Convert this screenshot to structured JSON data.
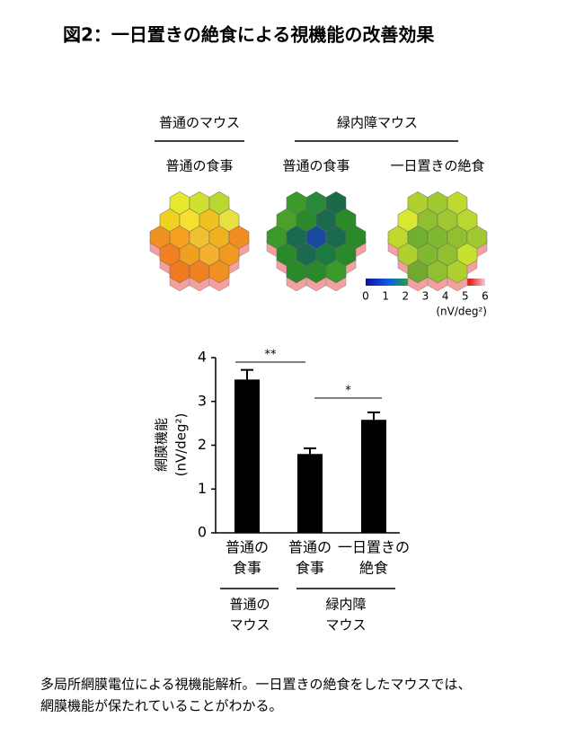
{
  "title": "図2：一日置きの絶食による視機能の改善効果",
  "heatmaps": {
    "groups": [
      {
        "label": "普通のマウス"
      },
      {
        "label": "緑内障マウス"
      }
    ],
    "panels": [
      {
        "label": "普通の食事",
        "label_color": "#000000",
        "cells": [
          "#e8e82a",
          "#cfe030",
          "#b8d830",
          "#f0d020",
          "#f5e030",
          "#f0c020",
          "#e8e040",
          "#f09020",
          "#f5a020",
          "#f0c030",
          "#f0b020",
          "#f08c20",
          "#f08020",
          "#f0a020",
          "#f5b030",
          "#f09a20",
          "#f07a20",
          "#f08020",
          "#f09020"
        ]
      },
      {
        "label": "普通の食事",
        "label_color": "#000000",
        "cells": [
          "#3a9a2a",
          "#2a8a3a",
          "#1a6a4a",
          "#4aa02a",
          "#2a8a2a",
          "#1a6a50",
          "#2a8a2a",
          "#3a9a2a",
          "#1a6a50",
          "#1a4aa0",
          "#1a6a50",
          "#2a8a2a",
          "#2a8a2a",
          "#1a6a50",
          "#1a7a40",
          "#2a8a2a",
          "#2a8a2a",
          "#2a8a2a",
          "#3a9a2a"
        ]
      },
      {
        "label": "一日置きの絶食",
        "label_color": "#e02020",
        "cells": [
          "#b0d030",
          "#a0c830",
          "#c0d830",
          "#d8e830",
          "#90c030",
          "#a0c830",
          "#b8d830",
          "#c0d830",
          "#70b030",
          "#80b830",
          "#90c030",
          "#a0c830",
          "#b0d030",
          "#80b830",
          "#90c030",
          "#c8e030",
          "#70a830",
          "#90c030",
          "#b0d030"
        ]
      }
    ],
    "base_color": "#f4a0a0",
    "colorbar": {
      "ticks": [
        0,
        1,
        2,
        3,
        4,
        5,
        6
      ],
      "unit": "(nV/deg²)"
    }
  },
  "chart_data": {
    "type": "bar",
    "y_label": [
      "網膜機能",
      "(nV/deg²)"
    ],
    "categories": [
      [
        "普通の",
        "食事"
      ],
      [
        "普通の",
        "食事"
      ],
      [
        "一日置きの",
        "絶食"
      ]
    ],
    "category_colors": [
      "#000000",
      "#000000",
      "#e02020"
    ],
    "values": [
      3.5,
      1.8,
      2.58
    ],
    "errors": [
      0.22,
      0.13,
      0.17
    ],
    "color": "#000000",
    "ylim": [
      0,
      4
    ],
    "yticks": [
      0,
      1,
      2,
      3,
      4
    ],
    "annotations": [
      "**",
      "*"
    ],
    "groups": [
      [
        "普通の",
        "マウス"
      ],
      [
        "緑内障",
        "マウス"
      ]
    ]
  },
  "footnote": [
    "多局所網膜電位による視機能解析。一日置きの絶食をしたマウスでは、",
    "網膜機能が保たれていることがわかる。"
  ]
}
